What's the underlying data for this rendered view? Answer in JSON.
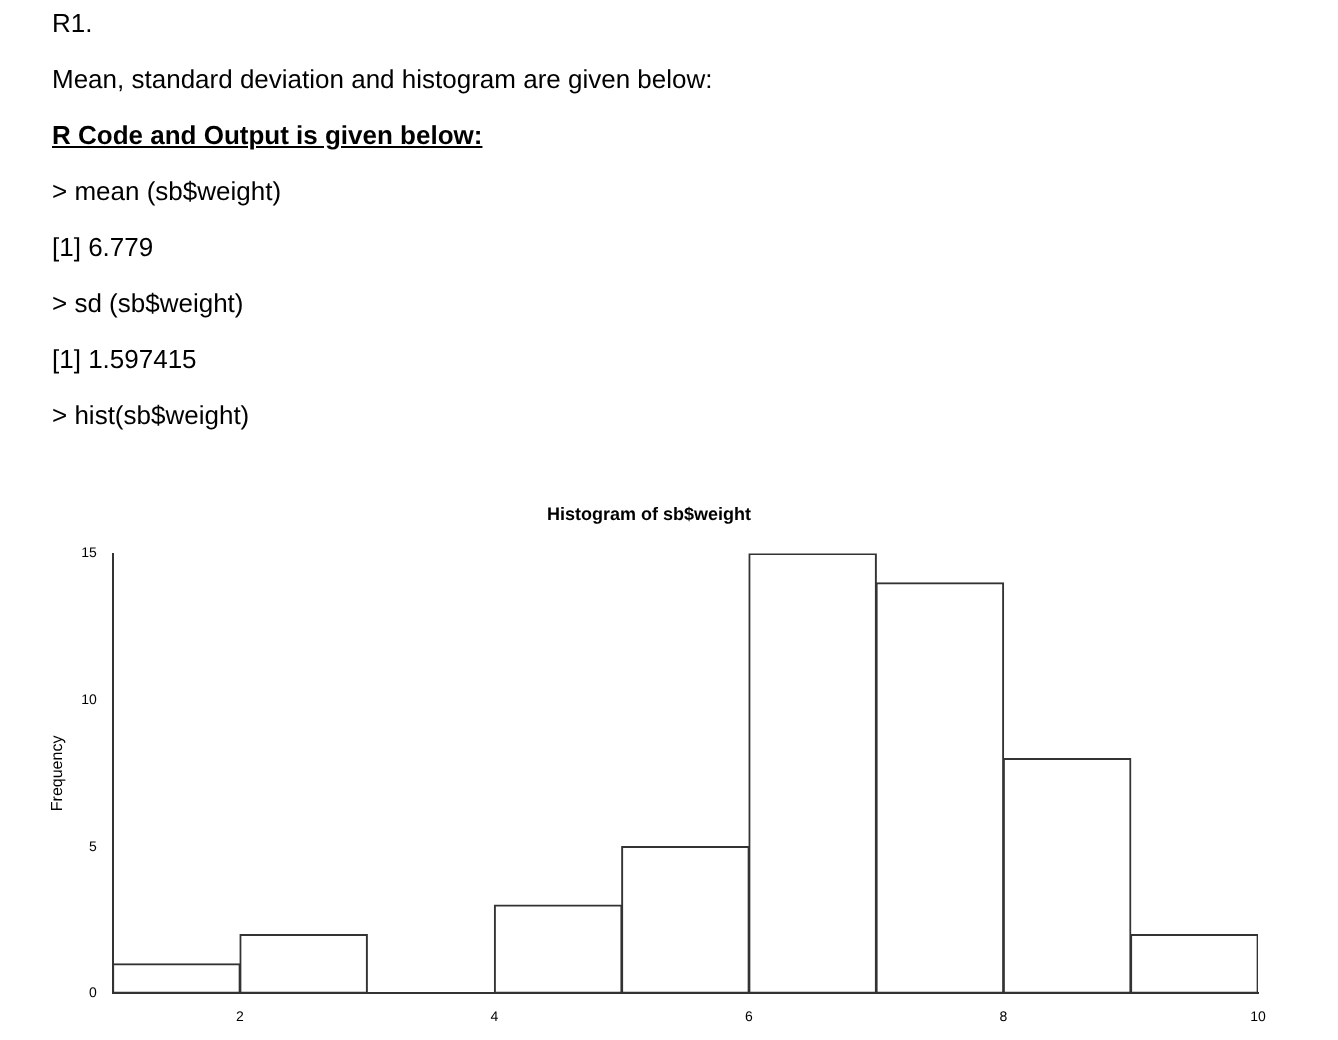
{
  "chart_data": {
    "type": "histogram",
    "title": "Histogram of sb$weight",
    "ylabel": "Frequency",
    "annotations": [
      "R1.",
      "Mean, standard deviation and histogram are given below:",
      "R Code and Output is given below:",
      "> mean (sb$weight)",
      "[1] 6.779",
      "> sd (sb$weight)",
      "[1] 1.597415",
      "> hist(sb$weight)"
    ],
    "bins": [
      1,
      2,
      3,
      4,
      5,
      6,
      7,
      8,
      9,
      10
    ],
    "values": [
      1,
      2,
      0,
      3,
      5,
      15,
      14,
      8,
      2
    ],
    "color": "#ffffff",
    "xlim": [
      1,
      10
    ],
    "xticks": [
      2,
      4,
      6,
      8,
      10
    ],
    "ylim": [
      0,
      15
    ],
    "yticks": [
      0,
      5,
      10,
      15
    ],
    "grid": false,
    "legend": false
  }
}
